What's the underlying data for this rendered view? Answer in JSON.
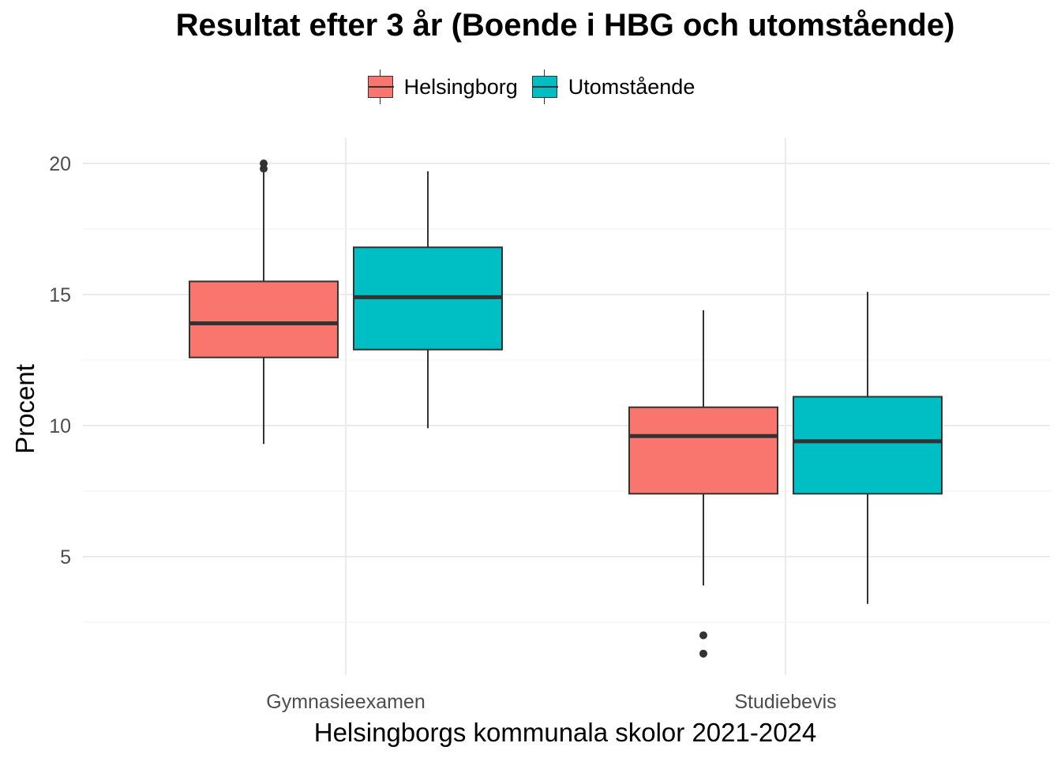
{
  "chart_data": {
    "type": "boxplot",
    "title": "Resultat efter 3 år (Boende i HBG och utomstående)",
    "xlabel": "Helsingborgs kommunala skolor 2021-2024",
    "ylabel": "Procent",
    "categories": [
      "Gymnasieexamen",
      "Studiebevis"
    ],
    "ylim": [
      1,
      21
    ],
    "yticks": [
      5,
      10,
      15,
      20
    ],
    "grid": true,
    "legend_position": "top",
    "series": [
      {
        "name": "Helsingborg",
        "color": "#F8766D",
        "boxes": [
          {
            "category": "Gymnasieexamen",
            "lower_whisker": 9.3,
            "q1": 12.6,
            "median": 13.9,
            "q3": 15.5,
            "upper_whisker": 19.7,
            "outliers": [
              19.8,
              20.0
            ]
          },
          {
            "category": "Studiebevis",
            "lower_whisker": 3.9,
            "q1": 7.4,
            "median": 9.6,
            "q3": 10.7,
            "upper_whisker": 14.4,
            "outliers": [
              2.0,
              1.3
            ]
          }
        ]
      },
      {
        "name": "Utomstående",
        "color": "#00BFC4",
        "boxes": [
          {
            "category": "Gymnasieexamen",
            "lower_whisker": 9.9,
            "q1": 12.9,
            "median": 14.9,
            "q3": 16.8,
            "upper_whisker": 19.7,
            "outliers": []
          },
          {
            "category": "Studiebevis",
            "lower_whisker": 3.2,
            "q1": 7.4,
            "median": 9.4,
            "q3": 11.1,
            "upper_whisker": 15.1,
            "outliers": []
          }
        ]
      }
    ]
  }
}
